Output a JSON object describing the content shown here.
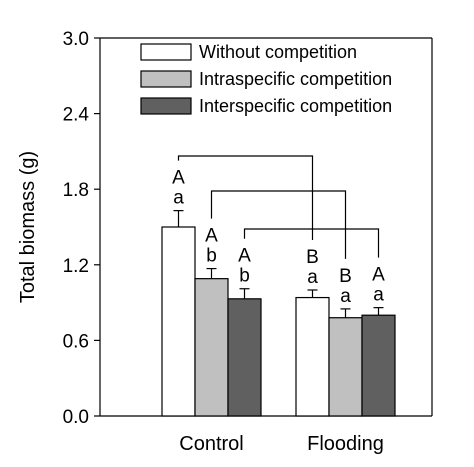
{
  "chart_data": {
    "type": "bar",
    "title": "",
    "xlabel": "",
    "ylabel": "Total biomass (g)",
    "ylim": [
      0,
      3.0
    ],
    "yticks": [
      "0.0",
      "0.6",
      "1.2",
      "1.8",
      "2.4",
      "3.0"
    ],
    "categories": [
      "Control",
      "Flooding"
    ],
    "legend_position": "top",
    "grid": false,
    "series": [
      {
        "name": "Without competition",
        "color": "#ffffff",
        "values": [
          1.5,
          0.94
        ],
        "errors": [
          0.13,
          0.06
        ],
        "letters": [
          [
            "A",
            "a"
          ],
          [
            "B",
            "a"
          ]
        ]
      },
      {
        "name": "Intraspecific competition",
        "color": "#c0c0c0",
        "values": [
          1.09,
          0.78
        ],
        "errors": [
          0.08,
          0.07
        ],
        "letters": [
          [
            "A",
            "b"
          ],
          [
            "B",
            "a"
          ]
        ]
      },
      {
        "name": "Interspecific competition",
        "color": "#606060",
        "values": [
          0.93,
          0.8
        ],
        "errors": [
          0.08,
          0.06
        ],
        "letters": [
          [
            "A",
            "b"
          ],
          [
            "A",
            "a"
          ]
        ]
      }
    ]
  }
}
